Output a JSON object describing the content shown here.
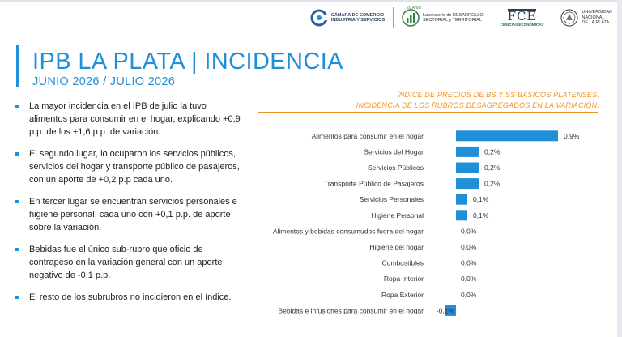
{
  "header": {
    "logos": [
      {
        "name": "Cámara de Comercio Industria y Servicios",
        "text": "CÁMARA DE COMERCIO\nINDUSTRIA Y SERVICIOS"
      },
      {
        "name": "Laboratorio de Desarrollo Sectorial y Territorial",
        "badge": "20 Años",
        "text": "Laboratorio de DESARROLLO\nSECTORIAL y TERRITORIAL"
      },
      {
        "name": "FCE",
        "mark": "FCE",
        "text": "CIENCIAS\nECONÓMICAS"
      },
      {
        "name": "Universidad Nacional de La Plata",
        "text": "UNIVERSIDAD\nNACIONAL\nDE LA PLATA"
      }
    ]
  },
  "title": "IPB LA PLATA | INCIDENCIA",
  "subtitle": "JUNIO 2026 / JULIO 2026",
  "bullets": [
    "La mayor incidencia en el IPB de julio la tuvo alimentos para consumir en el hogar, explicando +0,9 p.p. de los +1,6 p.p. de variación.",
    "El segundo lugar, lo ocuparon los servicios públicos, servicios del hogar y transporte público de pasajeros, con un aporte de +0,2 p.p cada uno.",
    "En tercer lugar se encuentran servicios personales e higiene personal, cada uno con +0,1 p.p. de aporte sobre la variación.",
    "Bebidas fue el único sub-rubro que oficio de contrapeso en la variación general con un aporte negativo de -0,1 p.p.",
    "El resto de los subrubros no incidieron en el índice."
  ],
  "chart_heading": {
    "line1": "ÍNDICE DE PRECIOS DE BS Y SS BÁSICOS PLATENSES.",
    "line2": "INCIDENCIA DE LOS RUBROS DESAGREGADOS EN LA VARIACIÓN."
  },
  "colors": {
    "accent": "#1f8fd8",
    "bar": "#1f8fd8",
    "heading": "#f29423"
  },
  "chart_data": {
    "type": "bar",
    "orientation": "horizontal",
    "categories": [
      "Alimentos para consumir en el hogar",
      "Servicios del Hogar",
      "Servicios Públicos",
      "Transporte Público de Pasajeros",
      "Servicios Personales",
      "Higiene Personal",
      "Alimentos y bebidas consumudos fuera del hogar",
      "Higiene del hogar",
      "Combustibles",
      "Ropa Interior",
      "Ropa Exterior",
      "Bebidas e infusiones para consumir en el hogar"
    ],
    "values": [
      0.9,
      0.2,
      0.2,
      0.2,
      0.1,
      0.1,
      0.0,
      0.0,
      0.0,
      0.0,
      0.0,
      -0.1
    ],
    "labels": [
      "0,9%",
      "0,2%",
      "0,2%",
      "0,2%",
      "0,1%",
      "0,1%",
      "0,0%",
      "0,0%",
      "0,0%",
      "0,0%",
      "0,0%",
      "-0,1%"
    ],
    "xlim": [
      -0.1,
      0.9
    ]
  }
}
